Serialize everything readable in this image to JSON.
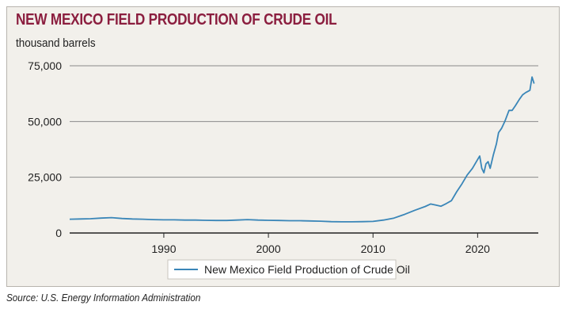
{
  "chart_data": {
    "type": "line",
    "title": "NEW MEXICO FIELD PRODUCTION OF CRUDE OIL",
    "subtitle": "thousand barrels",
    "source": "Source: U.S. Energy Information Administration",
    "xlabel": "",
    "ylabel": "",
    "xlim": [
      1981,
      2025.8
    ],
    "ylim": [
      0,
      75000
    ],
    "xticks": [
      1990,
      2000,
      2010,
      2020
    ],
    "yticks": [
      {
        "value": 0,
        "label": "0"
      },
      {
        "value": 25000,
        "label": "25,000"
      },
      {
        "value": 50000,
        "label": "50,000"
      },
      {
        "value": 75000,
        "label": "75,000"
      }
    ],
    "grid": "horizontal",
    "legend_position": "bottom-center",
    "colors": {
      "line": "#3a86b8",
      "grid": "#8a8a8a",
      "title": "#8b1e3f"
    },
    "series": [
      {
        "name": "New Mexico Field Production of Crude Oil",
        "x": [
          1981,
          1982,
          1983,
          1984,
          1985,
          1986,
          1987,
          1988,
          1989,
          1990,
          1991,
          1992,
          1993,
          1994,
          1995,
          1996,
          1997,
          1998,
          1999,
          2000,
          2001,
          2002,
          2003,
          2004,
          2005,
          2006,
          2007,
          2008,
          2009,
          2010,
          2011,
          2012,
          2013,
          2014,
          2015,
          2015.5,
          2016,
          2016.5,
          2017,
          2017.5,
          2018,
          2018.5,
          2019,
          2019.5,
          2020,
          2020.2,
          2020.4,
          2020.6,
          2020.8,
          2021,
          2021.2,
          2021.5,
          2021.8,
          2022,
          2022.3,
          2022.6,
          2023,
          2023.3,
          2023.6,
          2024,
          2024.3,
          2024.6,
          2025,
          2025.2,
          2025.4
        ],
        "values": [
          6200,
          6300,
          6400,
          6700,
          6900,
          6500,
          6300,
          6200,
          6000,
          5900,
          5900,
          5800,
          5800,
          5700,
          5600,
          5600,
          5800,
          6000,
          5800,
          5700,
          5600,
          5500,
          5500,
          5400,
          5300,
          5100,
          5000,
          5000,
          5100,
          5200,
          5800,
          6700,
          8300,
          10200,
          11900,
          13000,
          12500,
          12000,
          13200,
          14500,
          18500,
          22000,
          26000,
          29000,
          33000,
          34500,
          29000,
          27000,
          31000,
          32000,
          29000,
          35000,
          40000,
          45000,
          47000,
          50000,
          55000,
          55000,
          57000,
          60000,
          62000,
          63000,
          64000,
          70000,
          67000
        ]
      }
    ]
  }
}
